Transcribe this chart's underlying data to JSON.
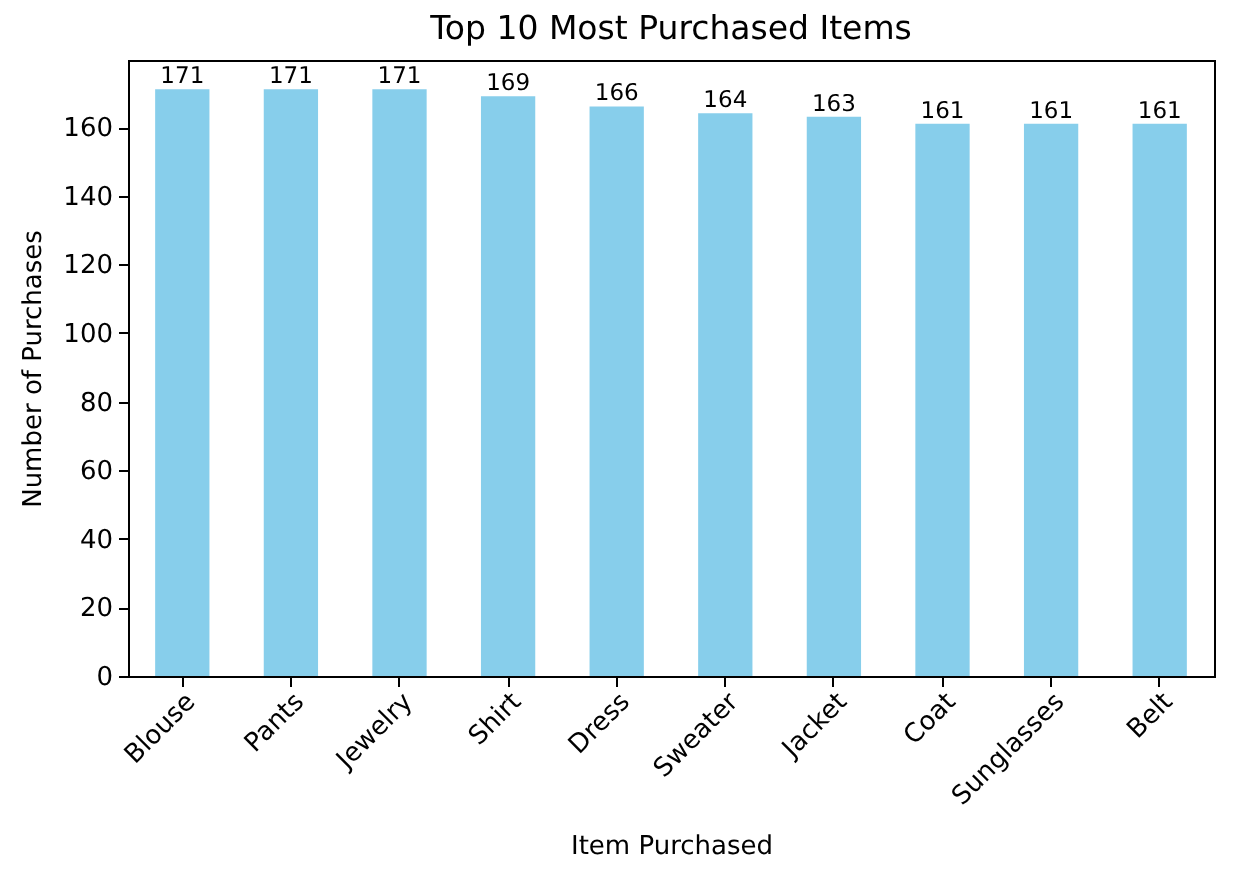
{
  "chart_data": {
    "type": "bar",
    "title": "Top 10 Most Purchased Items",
    "xlabel": "Item Purchased",
    "ylabel": "Number of Purchases",
    "categories": [
      "Blouse",
      "Pants",
      "Jewelry",
      "Shirt",
      "Dress",
      "Sweater",
      "Jacket",
      "Coat",
      "Sunglasses",
      "Belt"
    ],
    "values": [
      171,
      171,
      171,
      169,
      166,
      164,
      163,
      161,
      161,
      161
    ],
    "color": "#87ceeb",
    "ylim": [
      0,
      179.55
    ],
    "yticks": [
      0,
      20,
      40,
      60,
      80,
      100,
      120,
      140,
      160
    ],
    "data_labels": true
  }
}
